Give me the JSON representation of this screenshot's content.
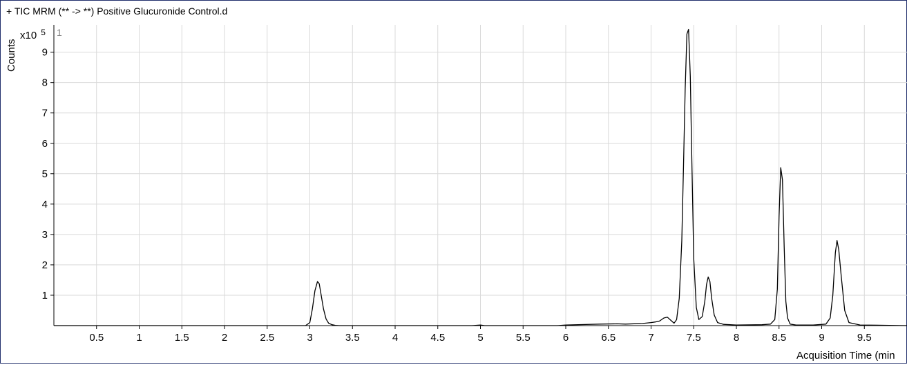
{
  "title": "+ TIC MRM (** -> **) Positive Glucuronide Control.d",
  "ylabel": "Counts",
  "scale_label": "x10",
  "scale_exponent": "5",
  "panel_index": "1",
  "colors": {
    "border": "#1f2d6b",
    "grid": "#d9d9d9",
    "trace": "#000000",
    "axis": "#000000"
  },
  "chart_data": {
    "type": "line",
    "title": "+ TIC MRM (** -> **) Positive Glucuronide Control.d",
    "xlabel": "Acquisition Time (min",
    "ylabel": "Counts",
    "y_multiplier": "x10^5",
    "xlim": [
      0,
      10.0
    ],
    "ylim": [
      0,
      9.9
    ],
    "grid": true,
    "x_ticks": [
      0.5,
      1,
      1.5,
      2,
      2.5,
      3,
      3.5,
      4,
      4.5,
      5,
      5.5,
      6,
      6.5,
      7,
      7.5,
      8,
      8.5,
      9,
      9.5
    ],
    "x_tick_labels": [
      "0.5",
      "1",
      "1.5",
      "2",
      "2.5",
      "3",
      "3.5",
      "4",
      "4.5",
      "5",
      "5.5",
      "6",
      "6.5",
      "7",
      "7.5",
      "8",
      "8.5",
      "9",
      "9.5"
    ],
    "y_ticks": [
      1,
      2,
      3,
      4,
      5,
      6,
      7,
      8,
      9
    ],
    "y_tick_labels": [
      "1",
      "2",
      "3",
      "4",
      "5",
      "6",
      "7",
      "8",
      "9"
    ],
    "series": [
      {
        "x": [
          0.0,
          2.95,
          3.0,
          3.03,
          3.06,
          3.09,
          3.11,
          3.13,
          3.16,
          3.19,
          3.22,
          3.26,
          3.3,
          3.35,
          3.45,
          4.9,
          5.0,
          5.05,
          5.15,
          5.9,
          6.0,
          6.4,
          6.6,
          6.7,
          6.9,
          7.0,
          7.05,
          7.1,
          7.15,
          7.19,
          7.23,
          7.27,
          7.3,
          7.33,
          7.36,
          7.38,
          7.4,
          7.42,
          7.44,
          7.46,
          7.48,
          7.5,
          7.53,
          7.56,
          7.6,
          7.63,
          7.65,
          7.67,
          7.69,
          7.71,
          7.74,
          7.78,
          7.85,
          8.0,
          8.3,
          8.4,
          8.45,
          8.48,
          8.5,
          8.52,
          8.54,
          8.56,
          8.58,
          8.6,
          8.63,
          8.7,
          8.9,
          9.05,
          9.1,
          9.13,
          9.16,
          9.18,
          9.2,
          9.23,
          9.27,
          9.32,
          9.45,
          10.0
        ],
        "y": [
          0.0,
          0.0,
          0.1,
          0.55,
          1.15,
          1.45,
          1.38,
          1.05,
          0.55,
          0.22,
          0.08,
          0.03,
          0.01,
          0.0,
          0.0,
          0.0,
          0.02,
          0.0,
          0.0,
          0.0,
          0.02,
          0.05,
          0.06,
          0.05,
          0.07,
          0.1,
          0.12,
          0.15,
          0.25,
          0.28,
          0.18,
          0.08,
          0.2,
          0.9,
          2.8,
          5.2,
          7.8,
          9.6,
          9.75,
          8.2,
          5.1,
          2.2,
          0.6,
          0.2,
          0.3,
          0.8,
          1.35,
          1.6,
          1.45,
          0.9,
          0.35,
          0.1,
          0.04,
          0.02,
          0.03,
          0.05,
          0.2,
          1.2,
          3.6,
          5.2,
          4.8,
          2.6,
          0.8,
          0.25,
          0.05,
          0.02,
          0.02,
          0.05,
          0.25,
          1.0,
          2.4,
          2.8,
          2.5,
          1.6,
          0.5,
          0.1,
          0.02,
          0.0
        ]
      }
    ]
  }
}
